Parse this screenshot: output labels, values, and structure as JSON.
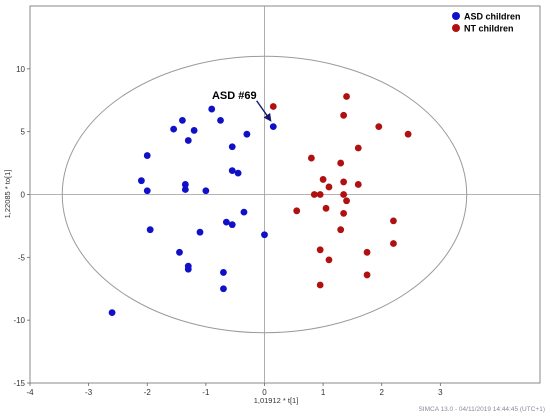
{
  "chart_data": {
    "type": "scatter",
    "xlabel": "1,01912 * t[1]",
    "ylabel": "1,22085 * to[1]",
    "xlim": [
      -4,
      4.7
    ],
    "ylim": [
      -15,
      15
    ],
    "xticks": [
      -4,
      -3,
      -2,
      -1,
      0,
      1,
      2,
      3
    ],
    "yticks": [
      -15,
      -10,
      -5,
      0,
      5,
      10
    ],
    "grid": false,
    "legend_position": "top-right",
    "ellipse": {
      "cx": 0,
      "cy": 0,
      "rx": 3.45,
      "ry": 11
    },
    "series": [
      {
        "name": "ASD children",
        "color": "#1010c8",
        "points": [
          [
            -1.4,
            5.9
          ],
          [
            -0.9,
            6.8
          ],
          [
            -0.75,
            5.9
          ],
          [
            -1.55,
            5.2
          ],
          [
            -1.2,
            5.1
          ],
          [
            -1.3,
            4.3
          ],
          [
            -0.55,
            3.8
          ],
          [
            -0.3,
            4.8
          ],
          [
            0.15,
            5.4
          ],
          [
            -2.0,
            3.1
          ],
          [
            -2.1,
            1.1
          ],
          [
            -2.0,
            0.3
          ],
          [
            -1.35,
            0.8
          ],
          [
            -1.35,
            0.4
          ],
          [
            -1.0,
            0.3
          ],
          [
            -0.55,
            1.9
          ],
          [
            -0.45,
            1.7
          ],
          [
            -1.95,
            -2.8
          ],
          [
            -1.1,
            -3.0
          ],
          [
            -0.65,
            -2.2
          ],
          [
            -0.55,
            -2.4
          ],
          [
            -0.35,
            -1.4
          ],
          [
            0.0,
            -3.2
          ],
          [
            -1.45,
            -4.6
          ],
          [
            -1.3,
            -5.7
          ],
          [
            -1.3,
            -5.95
          ],
          [
            -0.7,
            -6.2
          ],
          [
            -0.7,
            -7.5
          ],
          [
            -2.6,
            -9.4
          ]
        ]
      },
      {
        "name": "NT children",
        "color": "#b01010",
        "points": [
          [
            0.15,
            7.0
          ],
          [
            1.4,
            7.8
          ],
          [
            1.35,
            6.3
          ],
          [
            1.95,
            5.4
          ],
          [
            2.45,
            4.8
          ],
          [
            1.6,
            3.7
          ],
          [
            0.8,
            2.9
          ],
          [
            1.3,
            2.5
          ],
          [
            1.0,
            1.2
          ],
          [
            1.35,
            1.0
          ],
          [
            1.6,
            0.8
          ],
          [
            1.1,
            0.6
          ],
          [
            0.85,
            0.0
          ],
          [
            0.95,
            0.0
          ],
          [
            1.35,
            0.0
          ],
          [
            1.4,
            -0.5
          ],
          [
            1.05,
            -1.1
          ],
          [
            0.55,
            -1.3
          ],
          [
            1.35,
            -1.5
          ],
          [
            2.2,
            -2.1
          ],
          [
            1.3,
            -2.8
          ],
          [
            0.95,
            -4.4
          ],
          [
            2.2,
            -3.9
          ],
          [
            1.75,
            -4.6
          ],
          [
            1.1,
            -5.2
          ],
          [
            1.75,
            -6.4
          ],
          [
            0.95,
            -7.2
          ]
        ]
      }
    ],
    "annotations": [
      {
        "text": "ASD #69",
        "arrow_from": [
          -0.1,
          7.3
        ],
        "arrow_to": [
          0.15,
          5.6
        ]
      }
    ]
  },
  "footer": "SIMCA 13.0 - 04/11/2019 14:44:45 (UTC+1)"
}
